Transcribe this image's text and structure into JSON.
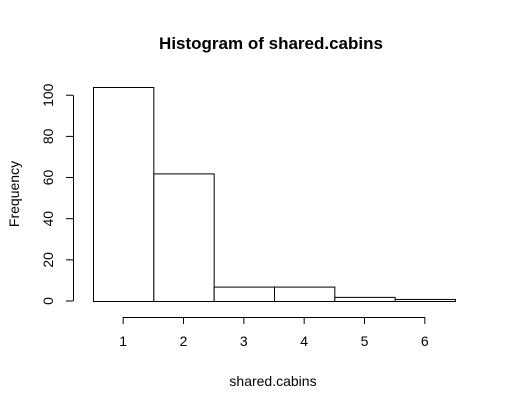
{
  "chart_data": {
    "type": "bar",
    "title": "Histogram of shared.cabins",
    "xlabel": "shared.cabins",
    "ylabel": "Frequency",
    "categories": [
      "1",
      "2",
      "3",
      "4",
      "5",
      "6"
    ],
    "bins": [
      [
        0.5,
        1.5
      ],
      [
        1.5,
        2.5
      ],
      [
        2.5,
        3.5
      ],
      [
        3.5,
        4.5
      ],
      [
        4.5,
        5.5
      ],
      [
        5.5,
        6.5
      ]
    ],
    "values": [
      104,
      62,
      7,
      7,
      2,
      1
    ],
    "xlim": [
      0.5,
      6.5
    ],
    "ylim": [
      0,
      104
    ],
    "xticks": [
      1,
      2,
      3,
      4,
      5,
      6
    ],
    "xtick_labels": [
      "1",
      "2",
      "3",
      "4",
      "5",
      "6"
    ],
    "yticks": [
      0,
      20,
      40,
      60,
      80,
      100
    ],
    "ytick_labels": [
      "0",
      "20",
      "40",
      "60",
      "80",
      "100"
    ],
    "grid": false,
    "legend": "none",
    "bar_fill": "#ffffff",
    "bar_stroke": "#000000"
  }
}
